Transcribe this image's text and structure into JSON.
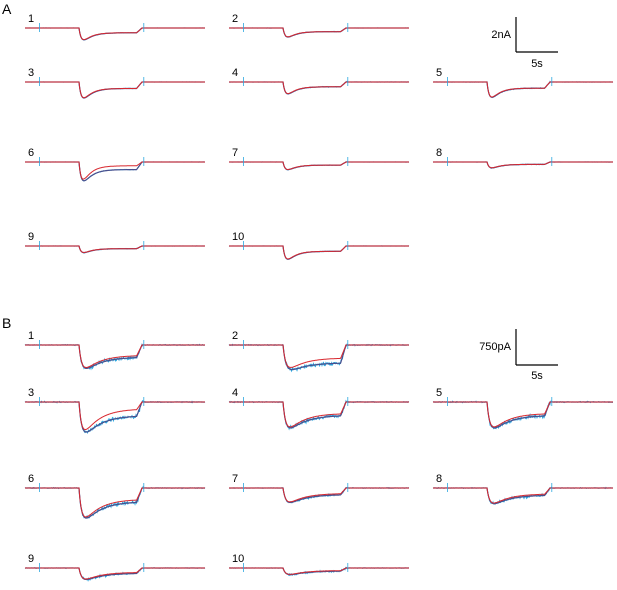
{
  "chart_data": [
    {
      "type": "line",
      "panel_label": "A",
      "colors": {
        "recorded": "#2aa7e0",
        "fit": "#d8282f",
        "overlay": "#4a4f8c"
      },
      "scale_bar": {
        "y_label": "2nA",
        "x_label": "5s"
      },
      "traces": [
        {
          "label": "1",
          "amplitude": 3.4,
          "noise": 0.35,
          "plateau": 0.2,
          "fit_plateau": 0.2
        },
        {
          "label": "2",
          "amplitude": 2.6,
          "noise": 0.35,
          "plateau": 0.2,
          "fit_plateau": 0.2
        },
        {
          "label": "3",
          "amplitude": 4.6,
          "noise": 0.35,
          "plateau": 0.2,
          "fit_plateau": 0.2
        },
        {
          "label": "4",
          "amplitude": 3.4,
          "noise": 0.6,
          "plateau": 0.2,
          "fit_plateau": 0.2
        },
        {
          "label": "5",
          "amplitude": 4.4,
          "noise": 0.6,
          "plateau": 0.2,
          "fit_plateau": 0.2
        },
        {
          "label": "6",
          "amplitude": 5.4,
          "noise": 0.35,
          "plateau": 0.2,
          "fit_plateau": 0.1
        },
        {
          "label": "7",
          "amplitude": 2.2,
          "noise": 0.35,
          "plateau": 0.2,
          "fit_plateau": 0.2
        },
        {
          "label": "8",
          "amplitude": 1.7,
          "noise": 0.4,
          "plateau": 0.2,
          "fit_plateau": 0.2
        },
        {
          "label": "9",
          "amplitude": 1.9,
          "noise": 0.4,
          "plateau": 0.2,
          "fit_plateau": 0.2
        },
        {
          "label": "10",
          "amplitude": 3.8,
          "noise": 0.35,
          "plateau": 0.2,
          "fit_plateau": 0.2
        }
      ]
    },
    {
      "type": "line",
      "panel_label": "B",
      "colors": {
        "recorded": "#2aa7e0",
        "fit": "#d8282f",
        "overlay": "#4a4f8c"
      },
      "scale_bar": {
        "y_label": "750pA",
        "x_label": "5s"
      },
      "traces": [
        {
          "label": "1",
          "amplitude": 3.8,
          "noise": 2.2,
          "plateau": 0.35,
          "fit_plateau": 0.3
        },
        {
          "label": "2",
          "amplitude": 3.6,
          "noise": 2.4,
          "plateau": 0.55,
          "fit_plateau": 0.4
        },
        {
          "label": "3",
          "amplitude": 5.0,
          "noise": 2.6,
          "plateau": 0.3,
          "fit_plateau": 0.15
        },
        {
          "label": "4",
          "amplitude": 4.2,
          "noise": 2.4,
          "plateau": 0.35,
          "fit_plateau": 0.3
        },
        {
          "label": "5",
          "amplitude": 4.2,
          "noise": 2.6,
          "plateau": 0.35,
          "fit_plateau": 0.3
        },
        {
          "label": "6",
          "amplitude": 5.0,
          "noise": 2.2,
          "plateau": 0.3,
          "fit_plateau": 0.25
        },
        {
          "label": "7",
          "amplitude": 2.4,
          "noise": 1.4,
          "plateau": 0.3,
          "fit_plateau": 0.25
        },
        {
          "label": "8",
          "amplitude": 2.6,
          "noise": 1.8,
          "plateau": 0.3,
          "fit_plateau": 0.25
        },
        {
          "label": "9",
          "amplitude": 1.9,
          "noise": 1.4,
          "plateau": 0.3,
          "fit_plateau": 0.25
        },
        {
          "label": "10",
          "amplitude": 1.1,
          "noise": 1.2,
          "plateau": 0.3,
          "fit_plateau": 0.25
        }
      ]
    }
  ]
}
